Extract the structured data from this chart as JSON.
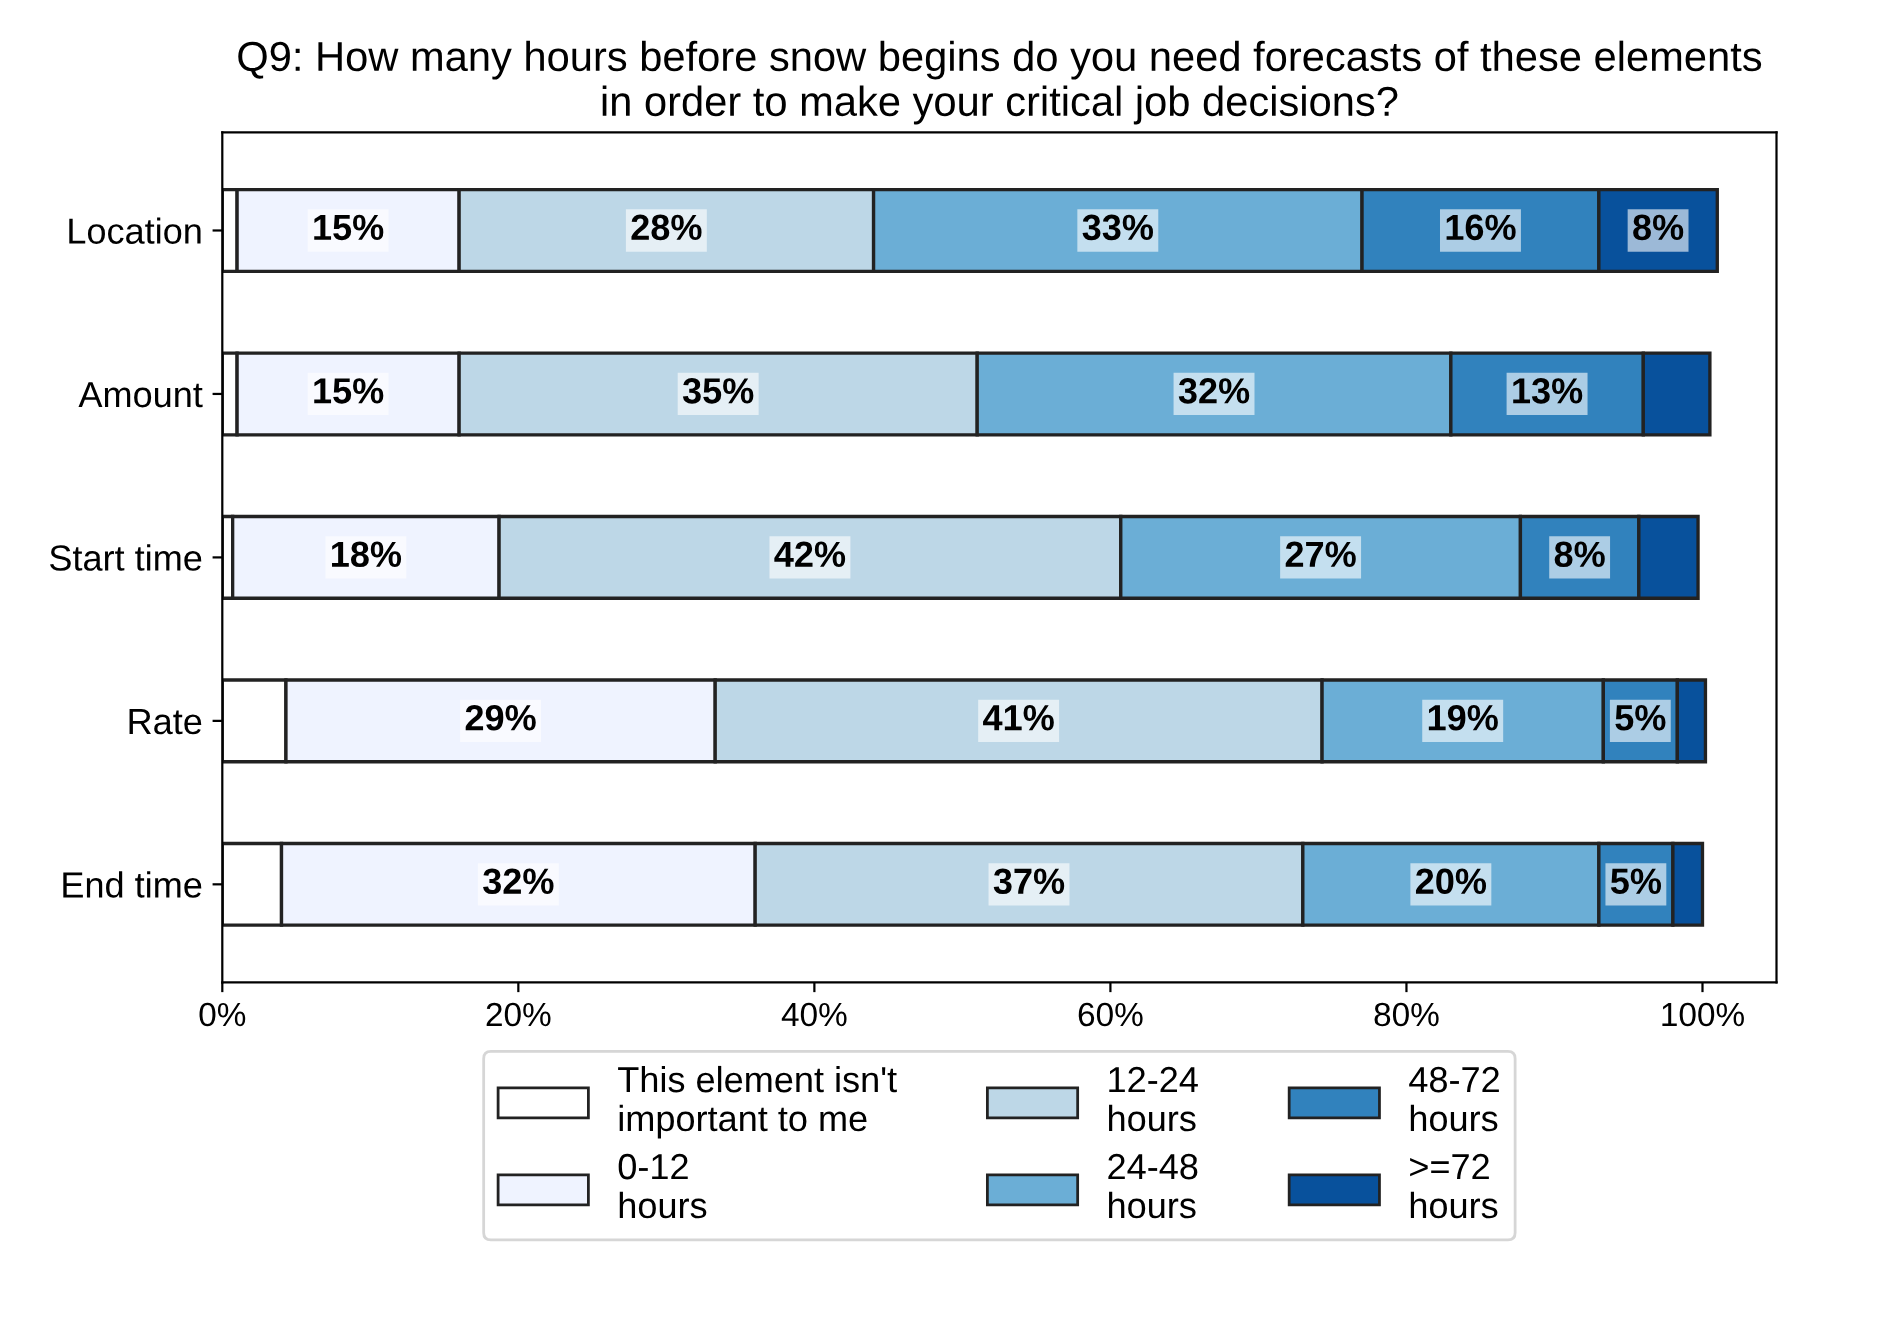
{
  "chart_data": {
    "type": "bar",
    "orientation": "horizontal",
    "stacked": true,
    "title": "Q9: How many hours before snow begins do you need forecasts of these elements\nin order to make your critical job decisions?",
    "categories": [
      "Location",
      "Amount",
      "Start time",
      "Rate",
      "End time"
    ],
    "series": [
      {
        "name": "This element isn't\nimportant to me",
        "color": "#ffffff",
        "values": [
          1,
          1,
          0.7,
          4.3,
          4.0
        ],
        "value_labels": [
          null,
          null,
          null,
          null,
          null
        ]
      },
      {
        "name": "0-12\nhours",
        "color": "#eff3ff",
        "values": [
          15,
          15,
          18,
          29,
          32
        ],
        "value_labels": [
          "15%",
          "15%",
          "18%",
          "29%",
          "32%"
        ]
      },
      {
        "name": "12-24\nhours",
        "color": "#bdd7e7",
        "values": [
          28,
          35,
          42,
          41,
          37
        ],
        "value_labels": [
          "28%",
          "35%",
          "42%",
          "41%",
          "37%"
        ]
      },
      {
        "name": "24-48\nhours",
        "color": "#6baed6",
        "values": [
          33,
          32,
          27,
          19,
          20
        ],
        "value_labels": [
          "33%",
          "32%",
          "27%",
          "19%",
          "20%"
        ]
      },
      {
        "name": "48-72\nhours",
        "color": "#3182bd",
        "values": [
          16,
          13,
          8,
          5,
          5
        ],
        "value_labels": [
          "16%",
          "13%",
          "8%",
          "5%",
          "5%"
        ]
      },
      {
        "name": ">=72\nhours",
        "color": "#08519c",
        "values": [
          8,
          4.5,
          4.0,
          1.9,
          2.0
        ],
        "value_labels": [
          "8%",
          null,
          null,
          null,
          null
        ]
      }
    ],
    "xlim": [
      0,
      105
    ],
    "xticks": [
      {
        "value": 0,
        "label": "0%"
      },
      {
        "value": 20,
        "label": "20%"
      },
      {
        "value": 40,
        "label": "40%"
      },
      {
        "value": 60,
        "label": "60%"
      },
      {
        "value": 80,
        "label": "80%"
      },
      {
        "value": 100,
        "label": "100%"
      }
    ],
    "legend": "bottom",
    "grid": false
  }
}
